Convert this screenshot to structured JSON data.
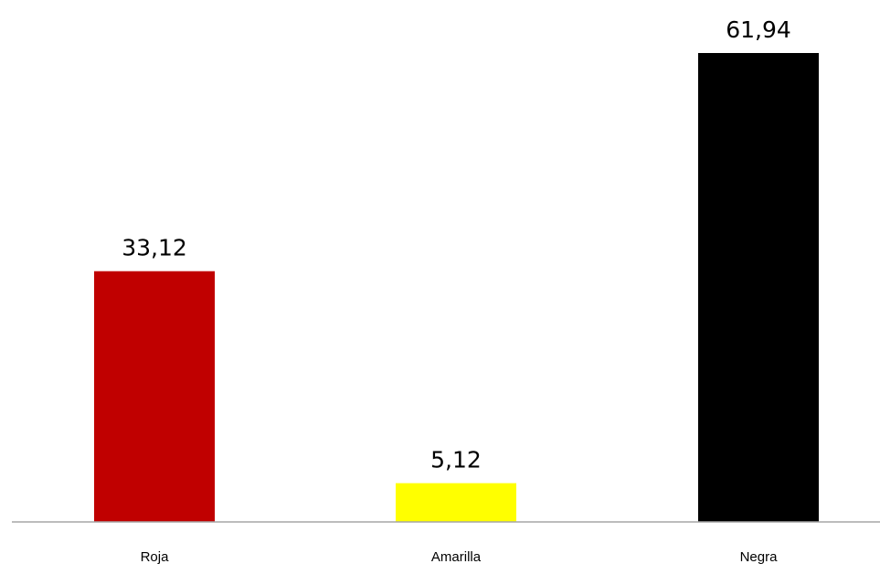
{
  "chart_data": {
    "type": "bar",
    "categories": [
      "Roja",
      "Amarilla",
      "Negra"
    ],
    "values": [
      33.12,
      5.12,
      61.94
    ],
    "value_labels": [
      "33,12",
      "5,12",
      "61,94"
    ],
    "colors": [
      "#c00000",
      "#ffff00",
      "#000000"
    ],
    "axis_color": "#a6a6a6",
    "ylim": [
      0,
      61.94
    ],
    "grid": false,
    "legend": false
  }
}
